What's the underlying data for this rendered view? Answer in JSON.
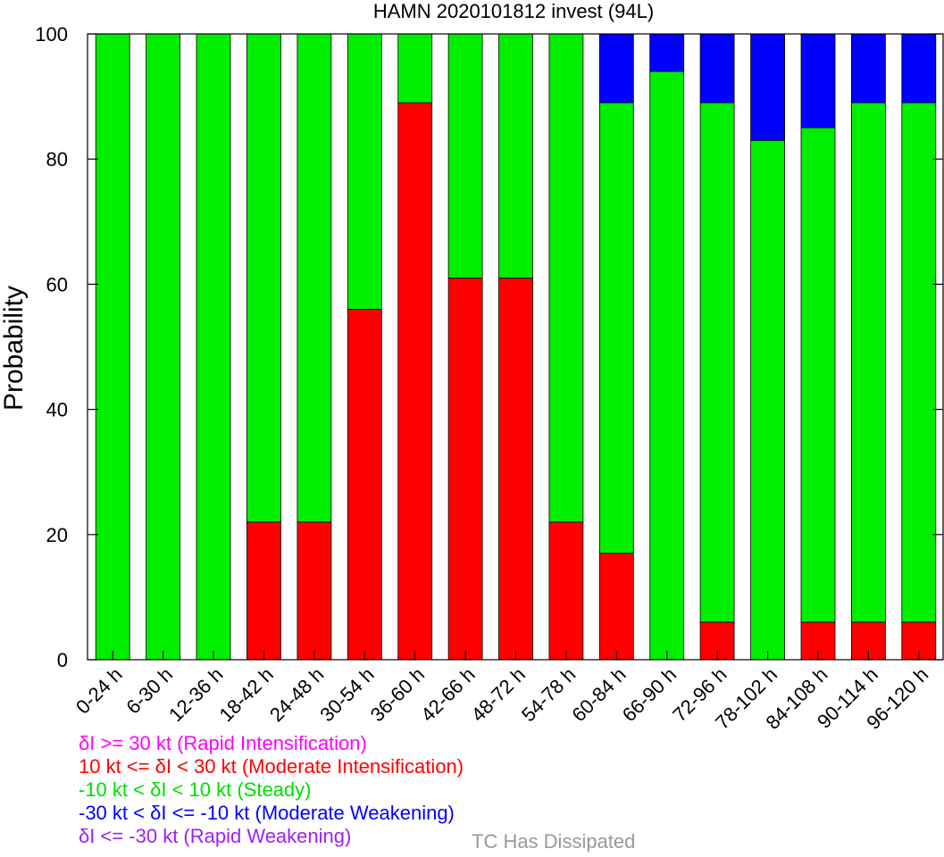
{
  "chart_data": {
    "type": "bar",
    "stacked": true,
    "title": "HAMN 2020101812 invest (94L)",
    "ylabel": "Probability",
    "ylim": [
      0,
      100
    ],
    "yticks": [
      0,
      20,
      40,
      60,
      80,
      100
    ],
    "categories": [
      "0-24 h",
      "6-30 h",
      "12-36 h",
      "18-42 h",
      "24-48 h",
      "30-54 h",
      "36-60 h",
      "42-66 h",
      "48-72 h",
      "54-78 h",
      "60-84 h",
      "66-90 h",
      "72-96 h",
      "78-102 h",
      "84-108 h",
      "90-114 h",
      "96-120 h"
    ],
    "series": [
      {
        "key": "rapid_intensification",
        "color": "#ff00ff",
        "values": [
          0,
          0,
          0,
          0,
          0,
          0,
          0,
          0,
          0,
          0,
          0,
          0,
          0,
          0,
          0,
          0,
          0
        ]
      },
      {
        "key": "moderate_intensification",
        "color": "#ff0000",
        "values": [
          0,
          0,
          0,
          22,
          22,
          56,
          89,
          61,
          61,
          22,
          17,
          0,
          6,
          0,
          6,
          6,
          6
        ]
      },
      {
        "key": "steady",
        "color": "#00ee00",
        "values": [
          100,
          100,
          100,
          78,
          78,
          44,
          11,
          39,
          39,
          78,
          72,
          94,
          83,
          83,
          79,
          83,
          83
        ]
      },
      {
        "key": "moderate_weakening",
        "color": "#0000ff",
        "values": [
          0,
          0,
          0,
          0,
          0,
          0,
          0,
          0,
          0,
          0,
          11,
          6,
          11,
          17,
          15,
          11,
          11
        ]
      },
      {
        "key": "rapid_weakening",
        "color": "#a020f0",
        "values": [
          0,
          0,
          0,
          0,
          0,
          0,
          0,
          0,
          0,
          0,
          0,
          0,
          0,
          0,
          0,
          0,
          0
        ]
      }
    ]
  },
  "legend": {
    "items": [
      {
        "text": "δI >= 30 kt (Rapid Intensification)",
        "color": "#ff00ff"
      },
      {
        "text": "10 kt <= δI < 30 kt (Moderate Intensification)",
        "color": "#ff0000"
      },
      {
        "text": "-10 kt < δI < 10 kt (Steady)",
        "color": "#00ee00"
      },
      {
        "text": "-30 kt < δI <= -10 kt (Moderate Weakening)",
        "color": "#0000ff"
      },
      {
        "text": "δI <= -30 kt (Rapid Weakening)",
        "color": "#a020f0"
      }
    ],
    "dissipated": {
      "text": "TC Has Dissipated",
      "color": "#999999"
    }
  }
}
